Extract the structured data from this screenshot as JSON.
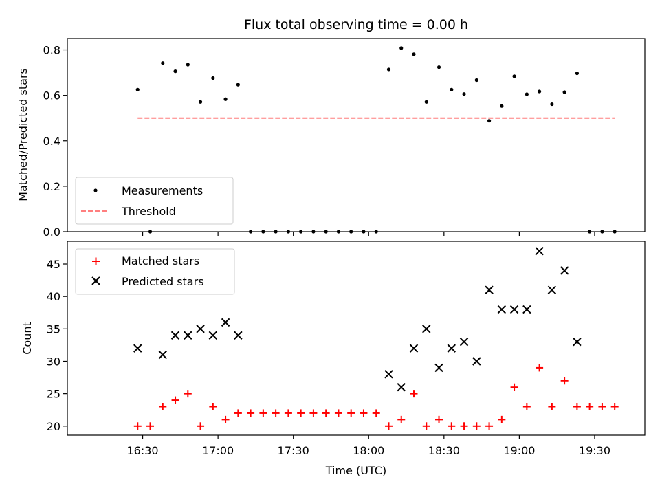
{
  "figure": {
    "title": "Flux total observing time = 0.00 h",
    "xlabel": "Time (UTC)",
    "x_tick_labels": [
      "16:30",
      "17:00",
      "17:30",
      "18:00",
      "18:30",
      "19:00",
      "19:30"
    ]
  },
  "chart_data": [
    {
      "type": "scatter",
      "ylabel": "Matched/Predicted stars",
      "xlim_minutes": [
        960,
        1190
      ],
      "ylim": [
        0,
        0.85
      ],
      "x_ticks": [
        "16:30",
        "17:00",
        "17:30",
        "18:00",
        "18:30",
        "19:00",
        "19:30"
      ],
      "y_ticks": [
        0.0,
        0.2,
        0.4,
        0.6,
        0.8
      ],
      "y_tick_labels": [
        "0.0",
        "0.2",
        "0.4",
        "0.6",
        "0.8"
      ],
      "legend": {
        "position": "lower-left",
        "measurements_label": "Measurements",
        "threshold_label": "Threshold"
      },
      "series": [
        {
          "name": "Measurements",
          "marker": "dot",
          "color": "#000000",
          "x": [
            "16:28",
            "16:33",
            "16:38",
            "16:43",
            "16:48",
            "16:53",
            "16:58",
            "17:03",
            "17:08",
            "17:13",
            "17:18",
            "17:23",
            "17:28",
            "17:33",
            "17:38",
            "17:43",
            "17:48",
            "17:53",
            "17:58",
            "18:03",
            "18:08",
            "18:13",
            "18:18",
            "18:23",
            "18:28",
            "18:33",
            "18:38",
            "18:43",
            "18:48",
            "18:53",
            "18:58",
            "19:03",
            "19:08",
            "19:13",
            "19:18",
            "19:23",
            "19:28",
            "19:33",
            "19:38"
          ],
          "y": [
            0.625,
            0.0,
            0.742,
            0.706,
            0.735,
            0.571,
            0.676,
            0.583,
            0.647,
            0.0,
            0.0,
            0.0,
            0.0,
            0.0,
            0.0,
            0.0,
            0.0,
            0.0,
            0.0,
            0.0,
            0.714,
            0.808,
            0.781,
            0.571,
            0.724,
            0.625,
            0.606,
            0.667,
            0.488,
            0.553,
            0.684,
            0.605,
            0.617,
            0.561,
            0.614,
            0.697,
            0.0,
            0.0,
            0.0
          ]
        },
        {
          "name": "Threshold",
          "marker": "dashed-line",
          "color": "#ff7f7f",
          "x": [
            "16:28",
            "19:38"
          ],
          "y": [
            0.5,
            0.5
          ]
        }
      ]
    },
    {
      "type": "scatter",
      "ylabel": "Count",
      "xlim_minutes": [
        960,
        1190
      ],
      "ylim": [
        18.6,
        48.5
      ],
      "x_ticks": [
        "16:30",
        "17:00",
        "17:30",
        "18:00",
        "18:30",
        "19:00",
        "19:30"
      ],
      "y_ticks": [
        20,
        25,
        30,
        35,
        40,
        45
      ],
      "y_tick_labels": [
        "20",
        "25",
        "30",
        "35",
        "40",
        "45"
      ],
      "legend": {
        "position": "upper-left",
        "matched_label": "Matched stars",
        "predicted_label": "Predicted stars"
      },
      "series": [
        {
          "name": "Matched stars",
          "marker": "plus",
          "color": "#ff0000",
          "x": [
            "16:28",
            "16:33",
            "16:38",
            "16:43",
            "16:48",
            "16:53",
            "16:58",
            "17:03",
            "17:08",
            "17:13",
            "17:18",
            "17:23",
            "17:28",
            "17:33",
            "17:38",
            "17:43",
            "17:48",
            "17:53",
            "17:58",
            "18:03",
            "18:08",
            "18:13",
            "18:18",
            "18:23",
            "18:28",
            "18:33",
            "18:38",
            "18:43",
            "18:48",
            "18:53",
            "18:58",
            "19:03",
            "19:08",
            "19:13",
            "19:18",
            "19:23",
            "19:28",
            "19:33",
            "19:38"
          ],
          "y": [
            20,
            20,
            23,
            24,
            25,
            20,
            23,
            21,
            22,
            22,
            22,
            22,
            22,
            22,
            22,
            22,
            22,
            22,
            22,
            22,
            20,
            21,
            25,
            20,
            21,
            20,
            20,
            20,
            20,
            21,
            26,
            23,
            29,
            23,
            27,
            23,
            23,
            23,
            23
          ]
        },
        {
          "name": "Predicted stars",
          "marker": "x",
          "color": "#000000",
          "x": [
            "16:28",
            "16:38",
            "16:43",
            "16:48",
            "16:53",
            "16:58",
            "17:03",
            "17:08",
            "18:08",
            "18:13",
            "18:18",
            "18:23",
            "18:28",
            "18:33",
            "18:38",
            "18:43",
            "18:48",
            "18:53",
            "18:58",
            "19:03",
            "19:08",
            "19:13",
            "19:18",
            "19:23"
          ],
          "y": [
            32,
            31,
            34,
            34,
            35,
            34,
            36,
            34,
            28,
            26,
            32,
            35,
            29,
            32,
            33,
            30,
            41,
            38,
            38,
            38,
            47,
            41,
            44,
            33
          ]
        }
      ]
    }
  ]
}
